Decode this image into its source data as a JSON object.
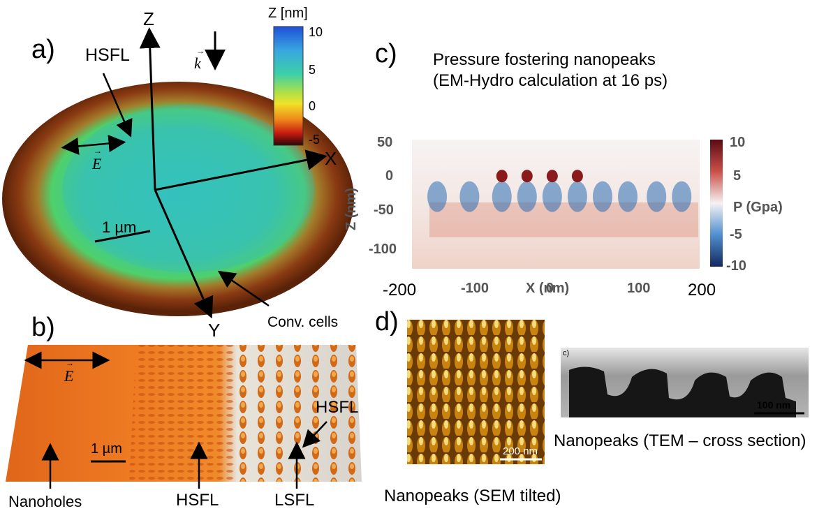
{
  "panel_a": {
    "label": "a)",
    "axes": {
      "z": "Z",
      "x": "X",
      "y": "Y"
    },
    "wavevector": "k",
    "annotations": {
      "hsfl": "HSFL",
      "efield": "E",
      "scale": "1 µm",
      "conv_cells": "Conv. cells"
    },
    "colorbar": {
      "title": "Z [nm]",
      "ticks": [
        "10",
        "5",
        "0",
        "-5"
      ]
    }
  },
  "panel_b": {
    "label": "b)",
    "annotations": {
      "efield": "E",
      "scale": "1 µm",
      "nanoholes": "Nanoholes",
      "hsfl_bottom": "HSFL",
      "lsfl": "LSFL",
      "hsfl_right": "HSFL"
    }
  },
  "panel_c": {
    "label": "c)",
    "title_line1": "Pressure fostering nanopeaks",
    "title_line2": "(EM-Hydro calculation at 16 ps)",
    "colorbar_label": "P (Gpa)",
    "colorbar_ticks": [
      "10",
      "5",
      "0",
      "-5",
      "-10"
    ],
    "chart_data": {
      "type": "heatmap",
      "xlabel": "X (nm)",
      "ylabel": "Z (nm)",
      "xlim": [
        -200,
        200
      ],
      "ylim": [
        -120,
        50
      ],
      "xticks": [
        "-200",
        "-100",
        "0",
        "100",
        "200"
      ],
      "yticks": [
        "50",
        "0",
        "-50",
        "-100"
      ],
      "colorbar_range": [
        -10,
        10
      ],
      "colormap": "blue-white-red"
    }
  },
  "panel_d": {
    "label": "d)",
    "sem_scale": "200 nm",
    "sem_caption": "Nanopeaks (SEM tilted)",
    "tem_label": "c)",
    "tem_scale": "100 nm",
    "tem_caption": "Nanopeaks (TEM – cross section)"
  },
  "colors": {
    "crater_rim": "#8a3a10",
    "crater_center": "#3fd08a",
    "b_surface": "#e8741e",
    "pressure_hot": "#8b1a1a",
    "pressure_cold": "#2a6db5"
  }
}
